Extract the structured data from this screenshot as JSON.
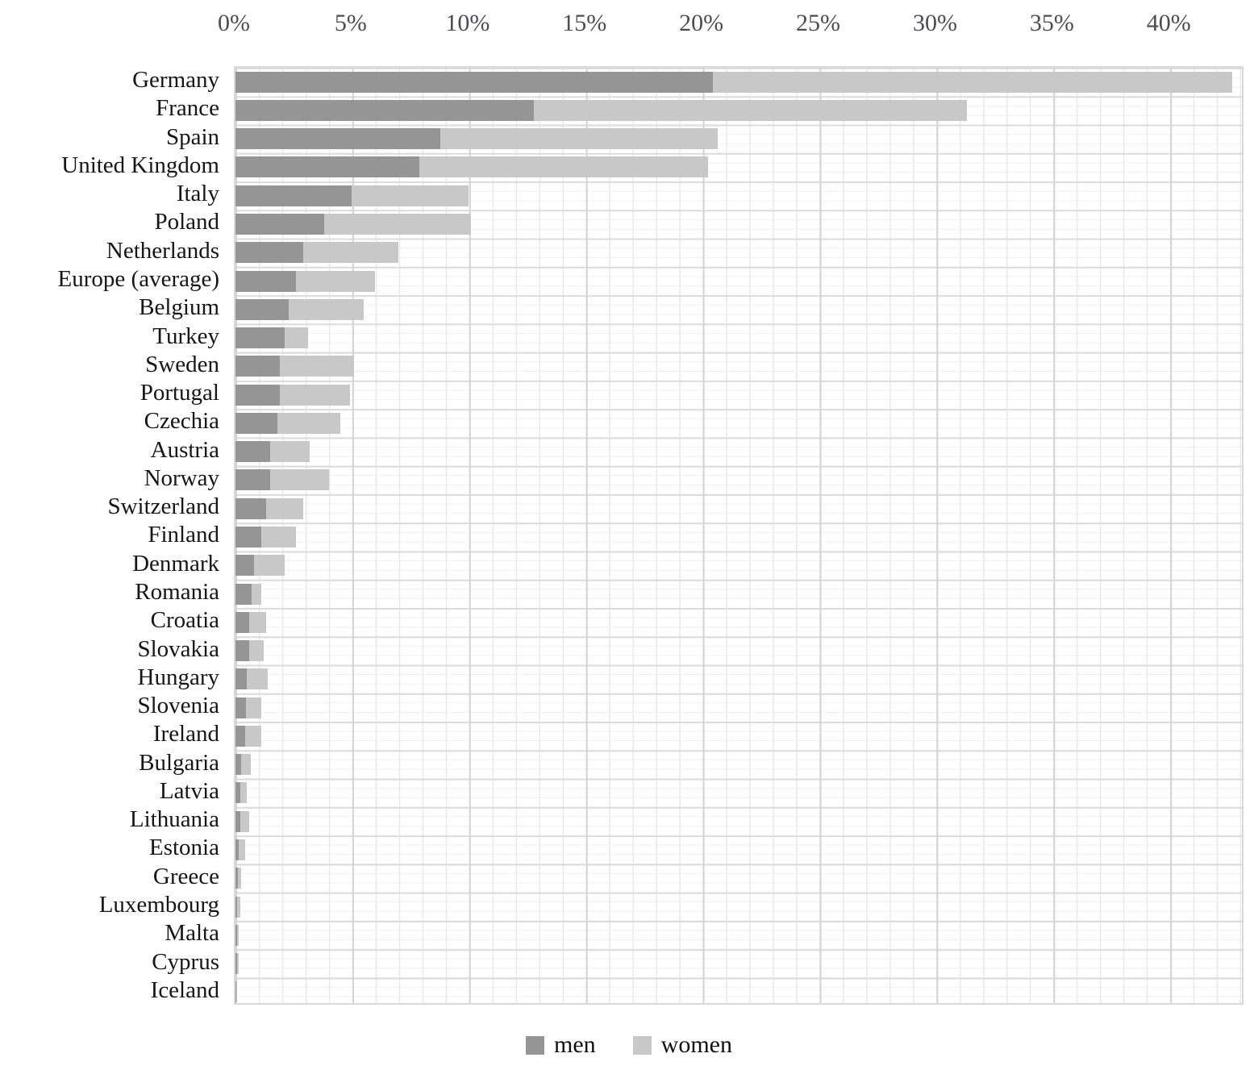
{
  "chart_data": {
    "type": "bar",
    "orientation": "horizontal-stacked",
    "title": "",
    "xlabel": "",
    "ylabel": "",
    "x_axis_position": "top",
    "xlim": [
      0,
      43.2
    ],
    "x_tick_values": [
      0,
      5,
      10,
      15,
      20,
      25,
      30,
      35,
      40
    ],
    "x_ticks": [
      "0%",
      "5%",
      "10%",
      "15%",
      "20%",
      "25%",
      "30%",
      "35%",
      "40%"
    ],
    "grid": "minor 1% vertical and fine horizontal mesh, on",
    "legend_position": "bottom-center",
    "categories": [
      "Germany",
      "France",
      "Spain",
      "United Kingdom",
      "Italy",
      "Poland",
      "Netherlands",
      "Europe (average)",
      "Belgium",
      "Turkey",
      "Sweden",
      "Portugal",
      "Czechia",
      "Austria",
      "Norway",
      "Switzerland",
      "Finland",
      "Denmark",
      "Romania",
      "Croatia",
      "Slovakia",
      "Hungary",
      "Slovenia",
      "Ireland",
      "Bulgaria",
      "Latvia",
      "Lithuania",
      "Estonia",
      "Greece",
      "Luxembourg",
      "Malta",
      "Cyprus",
      "Iceland"
    ],
    "series": [
      {
        "name": "men",
        "color": "#959595",
        "values": [
          20.5,
          12.8,
          8.8,
          7.9,
          5.0,
          3.8,
          2.9,
          2.6,
          2.3,
          2.1,
          1.9,
          1.9,
          1.8,
          1.5,
          1.5,
          1.3,
          1.1,
          0.8,
          0.7,
          0.6,
          0.6,
          0.5,
          0.45,
          0.4,
          0.25,
          0.2,
          0.2,
          0.15,
          0.1,
          0.08,
          0.06,
          0.08,
          0.05
        ]
      },
      {
        "name": "women",
        "color": "#c8c8c8",
        "values": [
          22.3,
          18.6,
          11.9,
          12.4,
          5.0,
          6.3,
          4.1,
          3.4,
          3.2,
          1.0,
          3.2,
          3.0,
          2.7,
          1.7,
          2.5,
          1.6,
          1.5,
          1.3,
          0.4,
          0.7,
          0.6,
          0.9,
          0.65,
          0.7,
          0.4,
          0.3,
          0.4,
          0.25,
          0.15,
          0.12,
          0.09,
          0.05,
          0.02
        ]
      }
    ],
    "legend": [
      {
        "label": "men",
        "color": "#959595"
      },
      {
        "label": "women",
        "color": "#c8c8c8"
      }
    ]
  }
}
